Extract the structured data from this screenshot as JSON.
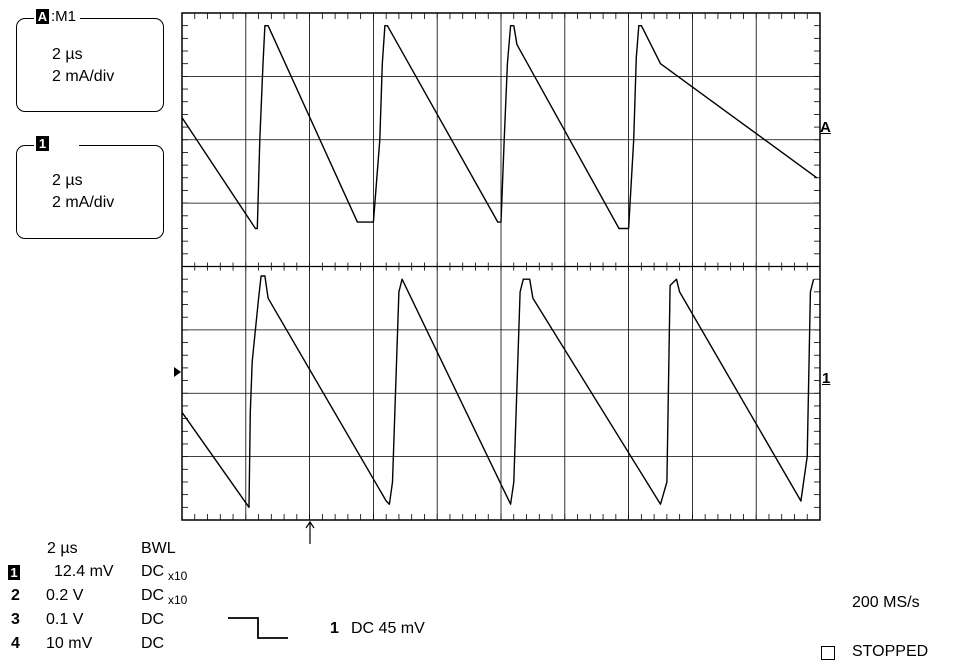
{
  "trace_box_a": {
    "tag_letter": "A",
    "tag_text": ":M1",
    "time_per_div": "2 µs",
    "amp_per_div": "2 mA/div"
  },
  "trace_box_1": {
    "tag_number": "1",
    "time_per_div": "2 µs",
    "amp_per_div": "2 mA/div"
  },
  "markers": {
    "right_a": "A",
    "right_1": "1"
  },
  "readout": {
    "timebase": "2 µs",
    "bwl": "BWL",
    "channels": [
      {
        "num": "1",
        "volts": "12.4 mV",
        "coupling": "DC",
        "probe": "x10"
      },
      {
        "num": "2",
        "volts": "0.2 V",
        "coupling": "DC",
        "probe": "x10"
      },
      {
        "num": "3",
        "volts": "0.1 V",
        "coupling": "DC",
        "probe": ""
      },
      {
        "num": "4",
        "volts": "10 mV",
        "coupling": "DC",
        "probe": ""
      }
    ],
    "trigger_channel": "1",
    "trigger_text": "DC 45 mV",
    "sample_rate": "200 MS/s",
    "status": "STOPPED"
  },
  "chart_data": {
    "type": "line",
    "grid": true,
    "x_divisions": 10,
    "y_divisions_per_panel": 4,
    "series": [
      {
        "x": [
          0,
          1.15,
          1.18,
          1.22,
          1.27,
          1.3,
          1.35,
          2.75,
          3.0,
          3.1,
          3.14,
          3.18,
          3.22,
          4.95,
          5.0,
          5.05,
          5.1,
          5.15,
          5.2,
          5.25,
          6.85,
          7.0,
          7.08,
          7.12,
          7.16,
          7.2,
          7.5,
          9.95
        ],
        "y": [
          0.35,
          -1.4,
          -1.4,
          0.0,
          1.2,
          1.8,
          1.8,
          -1.3,
          -1.3,
          0.0,
          1.2,
          1.8,
          1.8,
          -1.3,
          -1.3,
          0.0,
          1.2,
          1.8,
          1.8,
          1.5,
          -1.4,
          -1.4,
          0.0,
          1.3,
          1.8,
          1.8,
          1.2,
          -0.6
        ]
      },
      {
        "x": [
          0,
          1.05,
          1.07,
          1.1,
          1.2,
          1.24,
          1.3,
          1.35,
          3.2,
          3.25,
          3.3,
          3.4,
          3.45,
          5.15,
          5.2,
          5.3,
          5.35,
          5.45,
          5.5,
          7.5,
          7.6,
          7.65,
          7.75,
          7.8,
          9.7,
          9.8,
          9.85,
          9.9
        ],
        "y": [
          -0.3,
          -1.8,
          -0.3,
          0.5,
          1.5,
          1.85,
          1.85,
          1.5,
          -1.7,
          -1.75,
          -1.4,
          1.6,
          1.8,
          -1.75,
          -1.4,
          1.6,
          1.8,
          1.8,
          1.5,
          -1.75,
          -1.4,
          1.7,
          1.8,
          1.6,
          -1.7,
          -1.0,
          1.6,
          1.8
        ]
      }
    ]
  }
}
